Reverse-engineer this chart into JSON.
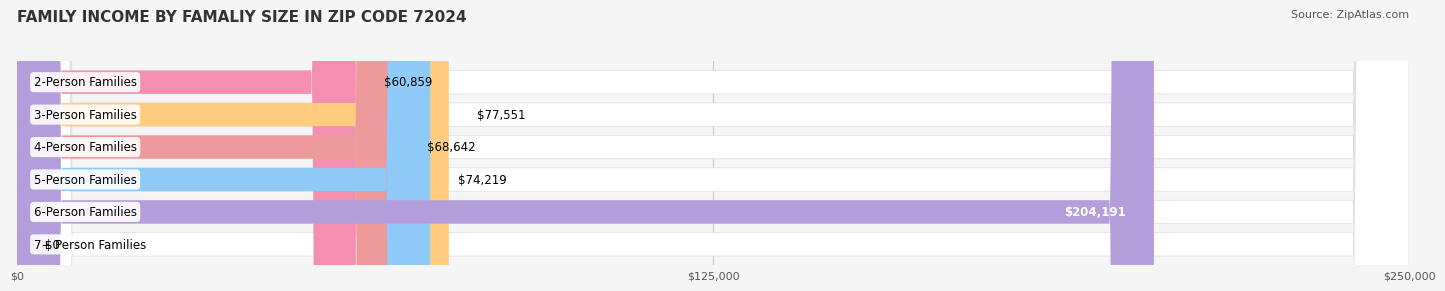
{
  "title": "FAMILY INCOME BY FAMALIY SIZE IN ZIP CODE 72024",
  "source": "Source: ZipAtlas.com",
  "categories": [
    "2-Person Families",
    "3-Person Families",
    "4-Person Families",
    "5-Person Families",
    "6-Person Families",
    "7+ Person Families"
  ],
  "values": [
    60859,
    77551,
    68642,
    74219,
    204191,
    0
  ],
  "bar_colors": [
    "#F48FB1",
    "#FFCC80",
    "#EF9A9A",
    "#90CAF9",
    "#B39DDB",
    "#80DEEA"
  ],
  "label_values": [
    "$60,859",
    "$77,551",
    "$68,642",
    "$74,219",
    "$204,191",
    "$0"
  ],
  "xlim": [
    0,
    250000
  ],
  "xticks": [
    0,
    125000,
    250000
  ],
  "xtick_labels": [
    "$0",
    "$125,000",
    "$250,000"
  ],
  "background_color": "#f5f5f5",
  "title_fontsize": 11,
  "source_fontsize": 8,
  "label_fontsize": 8.5,
  "category_fontsize": 8.5
}
